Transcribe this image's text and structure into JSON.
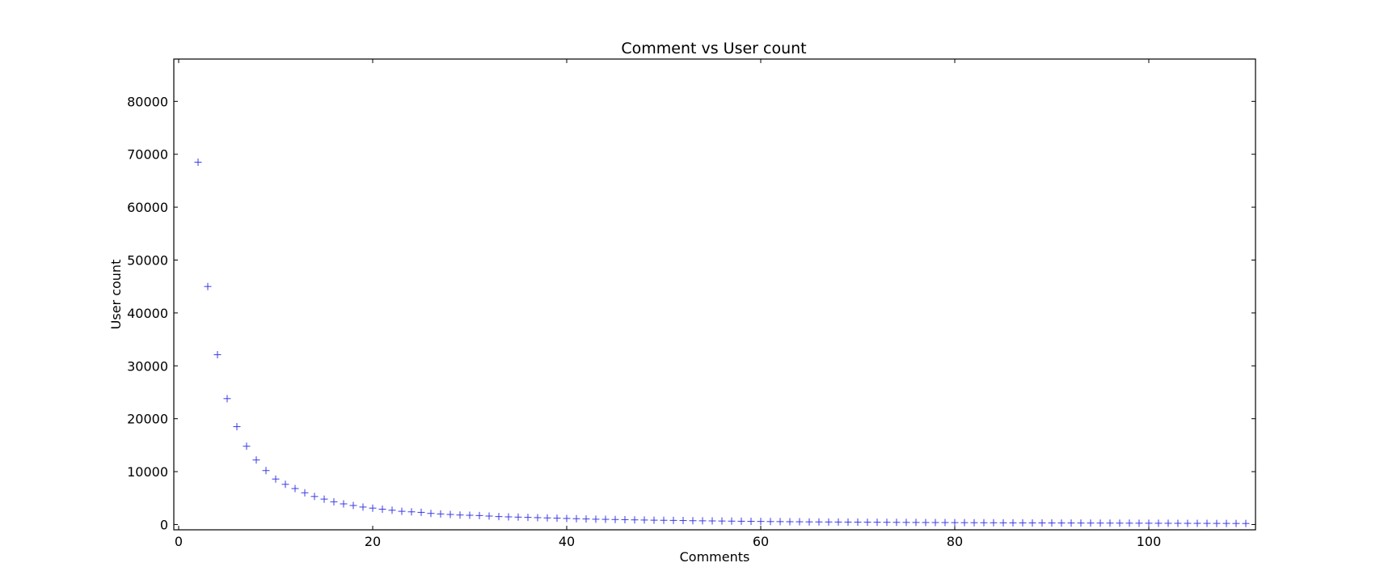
{
  "chart_data": {
    "type": "scatter",
    "title": "Comment vs User count",
    "xlabel": "Comments",
    "ylabel": "User count",
    "xlim": [
      -0.5,
      111
    ],
    "ylim": [
      -1000,
      88000
    ],
    "xticks": [
      0,
      20,
      40,
      60,
      80,
      100
    ],
    "yticks": [
      0,
      10000,
      20000,
      30000,
      40000,
      50000,
      60000,
      70000,
      80000
    ],
    "marker": "+",
    "marker_color": "#3a3ae6",
    "grid": false,
    "series": [
      {
        "x": [
          2,
          3,
          4,
          5,
          6,
          7,
          8,
          9,
          10,
          11,
          12,
          13,
          14,
          15,
          16,
          17,
          18,
          19,
          20,
          21,
          22,
          23,
          24,
          25,
          26,
          27,
          28,
          29,
          30,
          31,
          32,
          33,
          34,
          35,
          36,
          37,
          38,
          39,
          40,
          41,
          42,
          43,
          44,
          45,
          46,
          47,
          48,
          49,
          50,
          51,
          52,
          53,
          54,
          55,
          56,
          57,
          58,
          59,
          60,
          61,
          62,
          63,
          64,
          65,
          66,
          67,
          68,
          69,
          70,
          71,
          72,
          73,
          74,
          75,
          76,
          77,
          78,
          79,
          80,
          81,
          82,
          83,
          84,
          85,
          86,
          87,
          88,
          89,
          90,
          91,
          92,
          93,
          94,
          95,
          96,
          97,
          98,
          99,
          100,
          101,
          102,
          103,
          104,
          105,
          106,
          107,
          108,
          109,
          110
        ],
        "y": [
          68500,
          45000,
          32100,
          23800,
          18500,
          14800,
          12200,
          10200,
          8600,
          7600,
          6800,
          6000,
          5300,
          4800,
          4300,
          3900,
          3600,
          3300,
          3100,
          2900,
          2700,
          2500,
          2400,
          2300,
          2100,
          2000,
          1900,
          1800,
          1750,
          1700,
          1600,
          1500,
          1450,
          1400,
          1350,
          1300,
          1250,
          1200,
          1150,
          1100,
          1050,
          1000,
          980,
          950,
          920,
          880,
          850,
          820,
          800,
          780,
          750,
          720,
          700,
          680,
          660,
          640,
          620,
          600,
          580,
          560,
          550,
          530,
          520,
          500,
          490,
          480,
          470,
          460,
          450,
          440,
          430,
          420,
          410,
          400,
          390,
          380,
          375,
          370,
          360,
          350,
          345,
          340,
          330,
          320,
          315,
          310,
          305,
          300,
          295,
          290,
          285,
          280,
          275,
          270,
          265,
          260,
          255,
          250,
          245,
          240,
          235,
          230,
          225,
          220,
          215,
          210,
          205,
          200,
          195
        ]
      }
    ]
  }
}
